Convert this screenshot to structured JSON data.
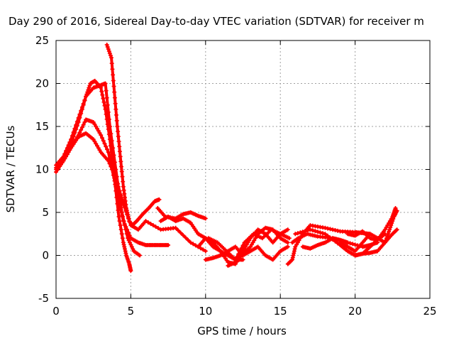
{
  "chart_data": {
    "type": "scatter",
    "title": "Day 290 of 2016, Sidereal Day-to-day VTEC variation (SDTVAR) for receiver m",
    "xlabel": "GPS time / hours",
    "ylabel": "SDTVAR / TECUs",
    "xlim": [
      0,
      25
    ],
    "ylim": [
      -5,
      25
    ],
    "xticks": [
      0,
      5,
      10,
      15,
      20,
      25
    ],
    "yticks": [
      -5,
      0,
      5,
      10,
      15,
      20,
      25
    ],
    "grid": true,
    "marker": "+",
    "color": "#ff0000",
    "series": [
      {
        "x": [
          0.0,
          0.5,
          1.0,
          1.5,
          2.0,
          2.3,
          2.6,
          3.0,
          3.3,
          3.6,
          3.9,
          4.2,
          4.5,
          4.7,
          4.9,
          5.0
        ],
        "y": [
          10.5,
          11.5,
          13.0,
          15.5,
          18.5,
          20.0,
          20.3,
          19.5,
          17.0,
          13.5,
          9.0,
          4.5,
          1.5,
          0.0,
          -1.0,
          -1.8
        ]
      },
      {
        "x": [
          0.0,
          0.5,
          1.0,
          1.5,
          2.0,
          2.5,
          3.0,
          3.3,
          3.6,
          4.0,
          4.4,
          4.8,
          5.2,
          5.6
        ],
        "y": [
          10.0,
          11.5,
          13.5,
          16.0,
          18.5,
          19.5,
          19.8,
          20.0,
          15.0,
          10.0,
          5.0,
          2.0,
          0.5,
          0.0
        ]
      },
      {
        "x": [
          3.4,
          3.7,
          3.9,
          4.1,
          4.3,
          4.5,
          4.7,
          4.9,
          5.1,
          5.4,
          5.8,
          6.2,
          6.6,
          6.9
        ],
        "y": [
          24.5,
          23.0,
          19.0,
          15.0,
          11.5,
          8.0,
          5.5,
          4.0,
          3.5,
          4.0,
          4.8,
          5.5,
          6.3,
          6.5
        ]
      },
      {
        "x": [
          0.0,
          0.5,
          1.0,
          1.5,
          2.0,
          2.5,
          3.0,
          3.5,
          4.0,
          4.5,
          5.0,
          5.5,
          6.0,
          6.5,
          7.0,
          7.5
        ],
        "y": [
          9.7,
          11.0,
          12.5,
          14.0,
          15.8,
          15.5,
          14.0,
          12.0,
          8.0,
          4.0,
          2.0,
          1.5,
          1.2,
          1.2,
          1.2,
          1.2
        ]
      },
      {
        "x": [
          0.0,
          0.5,
          1.0,
          1.5,
          2.0,
          2.5,
          3.0,
          3.5,
          4.0,
          4.5,
          5.0,
          5.5,
          6.0,
          7.0,
          8.0,
          9.0,
          10.0
        ],
        "y": [
          10.2,
          11.0,
          12.5,
          13.8,
          14.2,
          13.5,
          12.0,
          11.0,
          9.0,
          6.0,
          3.5,
          3.0,
          4.0,
          3.0,
          3.2,
          1.5,
          0.5
        ]
      },
      {
        "x": [
          6.8,
          7.3,
          8.0,
          8.5,
          9.0,
          9.5,
          10.0
        ],
        "y": [
          5.5,
          4.5,
          4.3,
          4.8,
          5.0,
          4.6,
          4.3
        ]
      },
      {
        "x": [
          7.0,
          7.5,
          8.0,
          8.5,
          9.0,
          9.5,
          10.0,
          10.5,
          11.0,
          11.5,
          12.0,
          12.5
        ],
        "y": [
          4.0,
          4.5,
          4.0,
          4.3,
          3.8,
          2.5,
          2.0,
          1.0,
          0.5,
          0.0,
          -0.5,
          -0.5
        ]
      },
      {
        "x": [
          9.5,
          10.0,
          10.5,
          11.0,
          11.5,
          12.0,
          12.5,
          13.0,
          13.5,
          14.0,
          14.5,
          15.0,
          15.5
        ],
        "y": [
          1.0,
          2.0,
          1.5,
          0.5,
          -0.8,
          -1.0,
          0.5,
          2.0,
          3.0,
          2.5,
          1.5,
          2.5,
          3.0
        ]
      },
      {
        "x": [
          10.0,
          10.5,
          11.0,
          11.5,
          12.0,
          12.5,
          13.0,
          13.5,
          14.0,
          14.5,
          15.0,
          15.5
        ],
        "y": [
          -0.5,
          -0.3,
          0.0,
          0.5,
          1.0,
          0.0,
          0.5,
          1.0,
          0.0,
          -0.5,
          0.5,
          1.0
        ]
      },
      {
        "x": [
          10.2,
          10.8,
          11.4,
          12.0,
          12.6,
          13.2,
          13.8,
          14.4,
          15.0,
          15.6
        ],
        "y": [
          2.0,
          1.5,
          0.5,
          -0.5,
          1.5,
          2.5,
          2.0,
          3.0,
          2.5,
          2.0
        ]
      },
      {
        "x": [
          11.5,
          12.0,
          12.5,
          13.0,
          13.5,
          14.0,
          14.5,
          15.0,
          15.5
        ],
        "y": [
          -1.2,
          -0.8,
          0.2,
          1.0,
          2.5,
          3.2,
          3.0,
          2.0,
          1.5
        ]
      },
      {
        "x": [
          15.5,
          15.8,
          16.0,
          16.5,
          17.0,
          18.0,
          19.0,
          20.0,
          20.5,
          21.0
        ],
        "y": [
          -1.0,
          -0.5,
          1.0,
          2.5,
          3.5,
          3.2,
          2.8,
          2.7,
          2.6,
          2.5
        ]
      },
      {
        "x": [
          15.8,
          16.2,
          16.8,
          17.5,
          18.5,
          19.5,
          20.5,
          21.0,
          21.5
        ],
        "y": [
          1.5,
          2.0,
          2.5,
          2.2,
          2.0,
          1.5,
          1.0,
          1.2,
          1.5
        ]
      },
      {
        "x": [
          16.0,
          17.0,
          18.0,
          19.0,
          19.5,
          20.0,
          20.5,
          21.0,
          21.5,
          22.0,
          22.5,
          22.7
        ],
        "y": [
          2.5,
          3.0,
          2.5,
          1.2,
          0.5,
          0.0,
          0.2,
          1.0,
          1.8,
          3.0,
          4.5,
          5.5
        ]
      },
      {
        "x": [
          19.0,
          19.5,
          20.0,
          20.5,
          21.0,
          21.5,
          22.0,
          22.5,
          22.8
        ],
        "y": [
          1.5,
          1.0,
          0.5,
          1.5,
          2.5,
          2.0,
          1.5,
          2.5,
          3.0
        ]
      },
      {
        "x": [
          20.0,
          20.5,
          21.0,
          21.5,
          22.0,
          22.3,
          22.6,
          22.8
        ],
        "y": [
          0.0,
          0.2,
          0.3,
          0.5,
          1.5,
          3.0,
          4.5,
          5.2
        ]
      },
      {
        "x": [
          19.5,
          20.0,
          20.5,
          21.0,
          21.5,
          22.0
        ],
        "y": [
          2.5,
          2.3,
          2.8,
          2.0,
          1.8,
          2.5
        ]
      },
      {
        "x": [
          16.5,
          17.0,
          17.5,
          18.0,
          18.5,
          19.0,
          19.5
        ],
        "y": [
          1.0,
          0.8,
          1.2,
          1.5,
          2.0,
          1.8,
          1.5
        ]
      }
    ]
  }
}
